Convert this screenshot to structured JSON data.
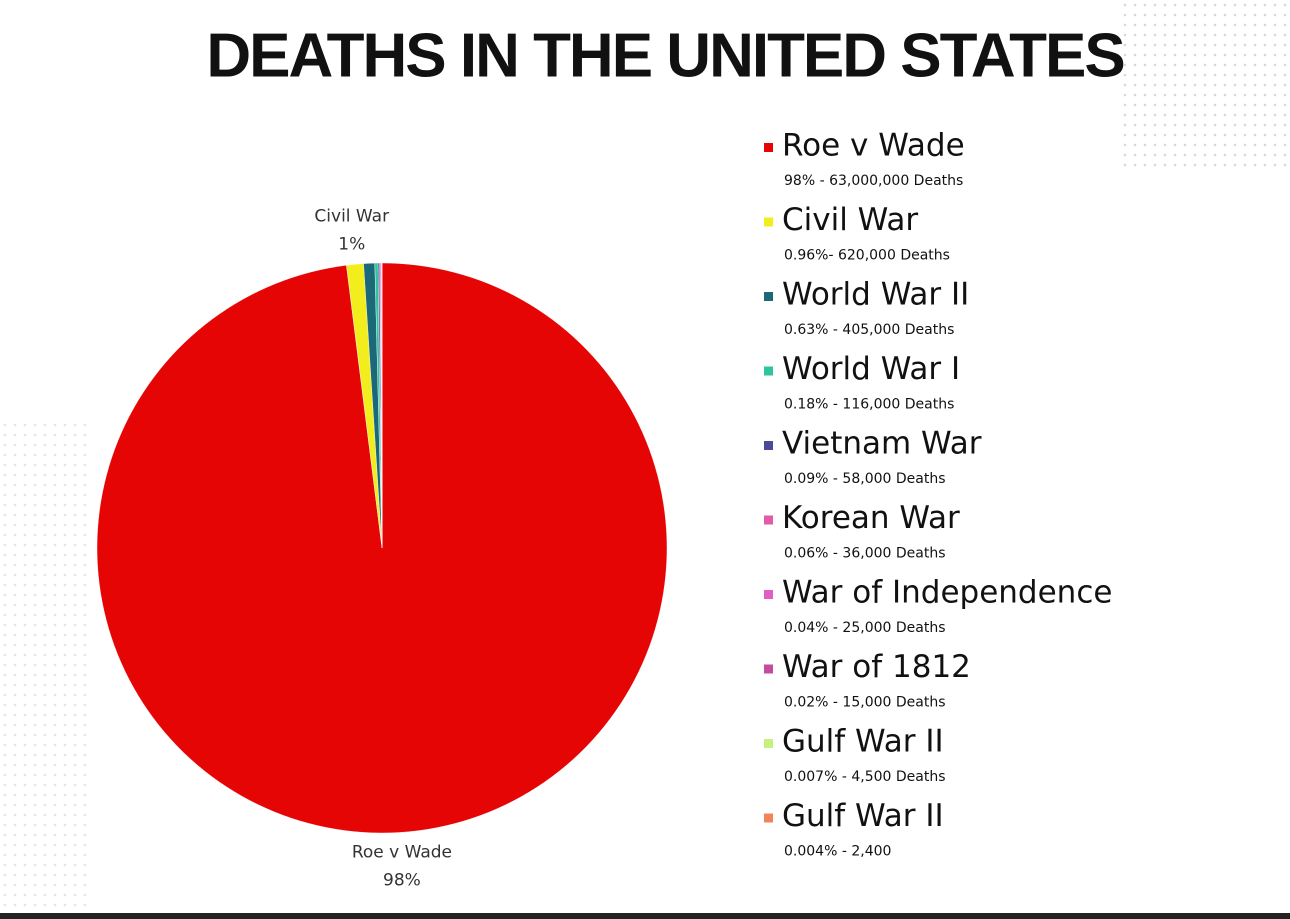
{
  "chart_data": {
    "type": "pie",
    "title": "DEATHS IN THE UNITED STATES",
    "series": [
      {
        "name": "Roe v Wade",
        "color": "#e60505",
        "values": [
          98
        ],
        "value_labels": [
          "98%"
        ],
        "detail": "98% - 63,000,000 Deaths"
      },
      {
        "name": "Civil War",
        "color": "#f2ee1e",
        "values": [
          0.96
        ],
        "value_labels": [
          "1%"
        ],
        "detail": "0.96%- 620,000 Deaths"
      },
      {
        "name": "World War II",
        "color": "#1b6878",
        "values": [
          0.63
        ],
        "detail": "0.63% - 405,000 Deaths"
      },
      {
        "name": "World War I",
        "color": "#2ec49c",
        "values": [
          0.18
        ],
        "detail": "0.18% - 116,000 Deaths"
      },
      {
        "name": "Vietnam War",
        "color": "#4b4a98",
        "values": [
          0.09
        ],
        "detail": "0.09% - 58,000 Deaths"
      },
      {
        "name": "Korean War",
        "color": "#e25aa8",
        "values": [
          0.06
        ],
        "detail": "0.06% - 36,000 Deaths"
      },
      {
        "name": "War of Independence",
        "color": "#e25ec4",
        "values": [
          0.04
        ],
        "detail": "0.04% - 25,000 Deaths"
      },
      {
        "name": "War of 1812",
        "color": "#c24c9e",
        "values": [
          0.02
        ],
        "detail": "0.02% - 15,000 Deaths"
      },
      {
        "name": "Gulf War II",
        "color": "#c4f27a",
        "values": [
          0.007
        ],
        "detail": "0.007% - 4,500 Deaths"
      },
      {
        "name": "Gulf War II",
        "color": "#f0845a",
        "values": [
          0.004
        ],
        "detail": "0.004% - 2,400"
      }
    ]
  }
}
